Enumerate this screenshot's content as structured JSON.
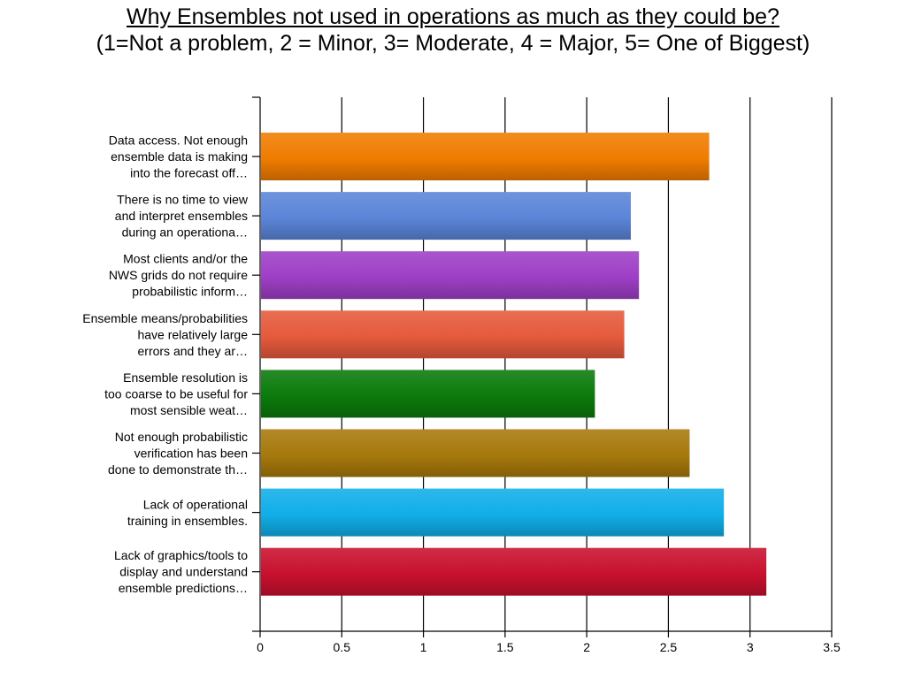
{
  "title": {
    "line1": "Why Ensembles not used in operations as much as they could be?",
    "line2": "(1=Not a problem, 2 = Minor, 3= Moderate, 4 = Major, 5= One of Biggest)"
  },
  "chart_data": {
    "type": "bar",
    "orientation": "horizontal",
    "title": "Why Ensembles not used in operations as much as they could be?",
    "subtitle": "(1=Not a problem, 2 = Minor, 3= Moderate, 4 = Major, 5= One of Biggest)",
    "xlim": [
      0,
      3.5
    ],
    "x_ticks": [
      "0",
      "0.5",
      "1",
      "1.5",
      "2",
      "2.5",
      "3",
      "3.5"
    ],
    "grid": "vertical major gridlines",
    "categories": [
      [
        "Data access. Not enough",
        "ensemble data is making",
        "into the forecast off…"
      ],
      [
        "There is no time to view",
        "and interpret ensembles",
        "during an operationa…"
      ],
      [
        "Most clients and/or the",
        "NWS grids do not require",
        "probabilistic inform…"
      ],
      [
        "Ensemble means/probabilities",
        "have relatively large",
        "errors and they ar…"
      ],
      [
        "Ensemble resolution is",
        "too coarse to be useful for",
        "most sensible weat…"
      ],
      [
        "Not enough probabilistic",
        "verification has been",
        "done to demonstrate th…"
      ],
      [
        "Lack of operational",
        "training in ensembles."
      ],
      [
        "Lack of graphics/tools to",
        "display and understand",
        "ensemble predictions…"
      ]
    ],
    "values": [
      2.75,
      2.27,
      2.32,
      2.23,
      2.05,
      2.63,
      2.84,
      3.1
    ],
    "colors": [
      "#f07c00",
      "#5b85d8",
      "#9e3fc6",
      "#e55a3c",
      "#0b7a0b",
      "#a7790c",
      "#10aee8",
      "#c8102e"
    ]
  }
}
